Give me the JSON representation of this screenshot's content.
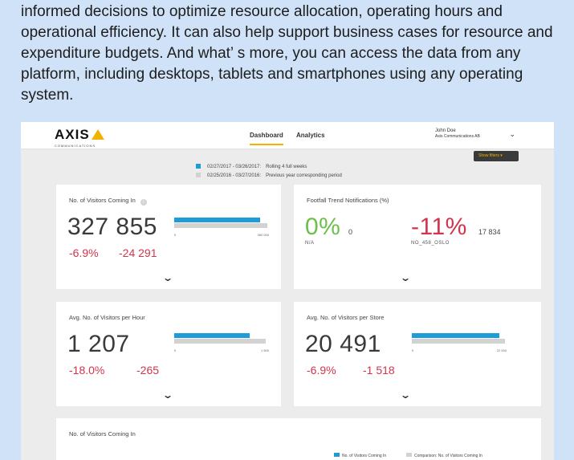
{
  "intro": {
    "text": "informed decisions to optimize resource allocation, operating hours and operational efficiency. It can also help support business cases for resource and expenditure budgets. And what’ s more, you can access the data from any platform, including desktops, tablets and smartphones using any operating system."
  },
  "header": {
    "logo_text": "AXIS",
    "logo_sub": "COMMUNICATIONS",
    "tabs": [
      {
        "label": "Dashboard",
        "active": true
      },
      {
        "label": "Analytics",
        "active": false
      }
    ],
    "user": {
      "name": "John Doe",
      "org": "Axis Communications AB"
    },
    "show_filters": "Show filters"
  },
  "legend": {
    "current": {
      "dates": "02/27/2017 - 03/26/2017:",
      "desc": "Rolling 4 full weeks",
      "color": "#1e9cd7"
    },
    "previous": {
      "dates": "02/25/2016 - 03/27/2016:",
      "desc": "Previous year corresponding period",
      "color": "#d2d2d2"
    }
  },
  "cards": {
    "visitors": {
      "title": "No. of Visitors Coming In",
      "value": "327 855",
      "pct": "-6.9%",
      "diff": "-24 291",
      "axis_min": "0",
      "axis_max": "360 000",
      "bar_current": 0.91,
      "bar_previous": 0.98
    },
    "footfall": {
      "title": "Footfall Trend Notifications (%)",
      "left_value": "0%",
      "left_count": "0",
      "left_label": "N/A",
      "right_value": "-11%",
      "right_count": "17 834",
      "right_label": "NO_458_OSLO"
    },
    "per_hour": {
      "title": "Avg. No. of Visitors per Hour",
      "value": "1 207",
      "pct": "-18.0%",
      "diff": "-265",
      "axis_min": "0",
      "axis_max": "1 500",
      "bar_current": 0.8,
      "bar_previous": 0.97
    },
    "per_store": {
      "title": "Avg. No. of Visitors per Store",
      "value": "20 491",
      "pct": "-6.9%",
      "diff": "-1 518",
      "axis_min": "0",
      "axis_max": "22 000",
      "bar_current": 0.92,
      "bar_previous": 0.98
    },
    "chart": {
      "title": "No. of Visitors Coming In",
      "legend_current": "No. of Visitors Coming In",
      "legend_compare": "Comparison: No. of Visitors Coming In"
    }
  },
  "colors": {
    "accent": "#1e9cd7",
    "compare": "#d2d2d2",
    "negative": "#d2344c",
    "positive": "#6cc04a",
    "brand": "#f2b200"
  }
}
